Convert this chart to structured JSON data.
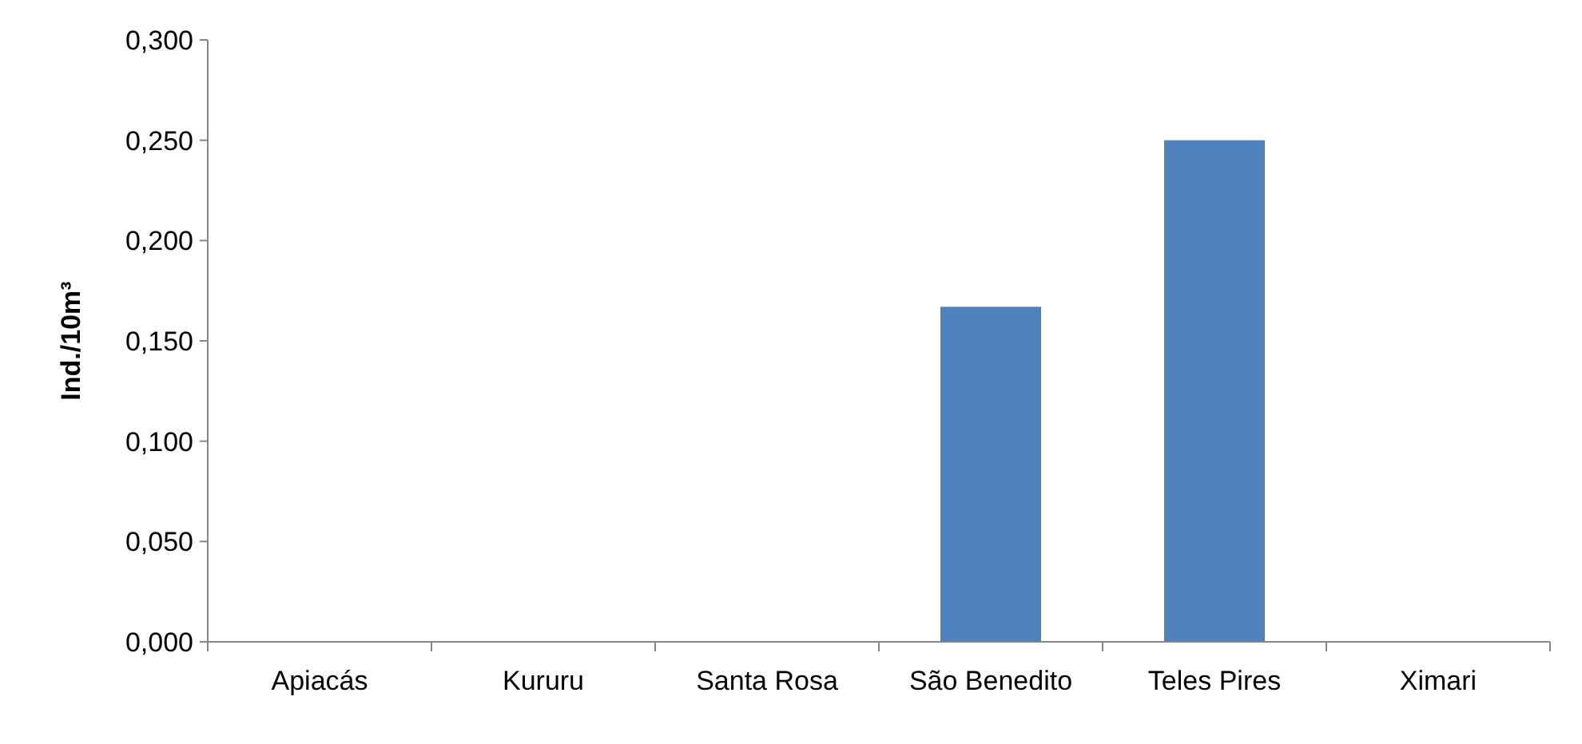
{
  "chart_data": {
    "type": "bar",
    "ylabel": "Ind./10m³",
    "categories": [
      "Apiacás",
      "Kururu",
      "Santa Rosa",
      "São Benedito",
      "Teles Pires",
      "Ximari"
    ],
    "values": [
      0,
      0,
      0,
      0.167,
      0.25,
      0
    ],
    "color": "#4f81bd",
    "ylim": [
      0,
      0.3
    ],
    "yticks": [
      {
        "value": 0,
        "label": "0,000"
      },
      {
        "value": 0.05,
        "label": "0,050"
      },
      {
        "value": 0.1,
        "label": "0,100"
      },
      {
        "value": 0.15,
        "label": "0,150"
      },
      {
        "value": 0.2,
        "label": "0,200"
      },
      {
        "value": 0.25,
        "label": "0,250"
      },
      {
        "value": 0.3,
        "label": "0,300"
      }
    ],
    "grid": false
  }
}
